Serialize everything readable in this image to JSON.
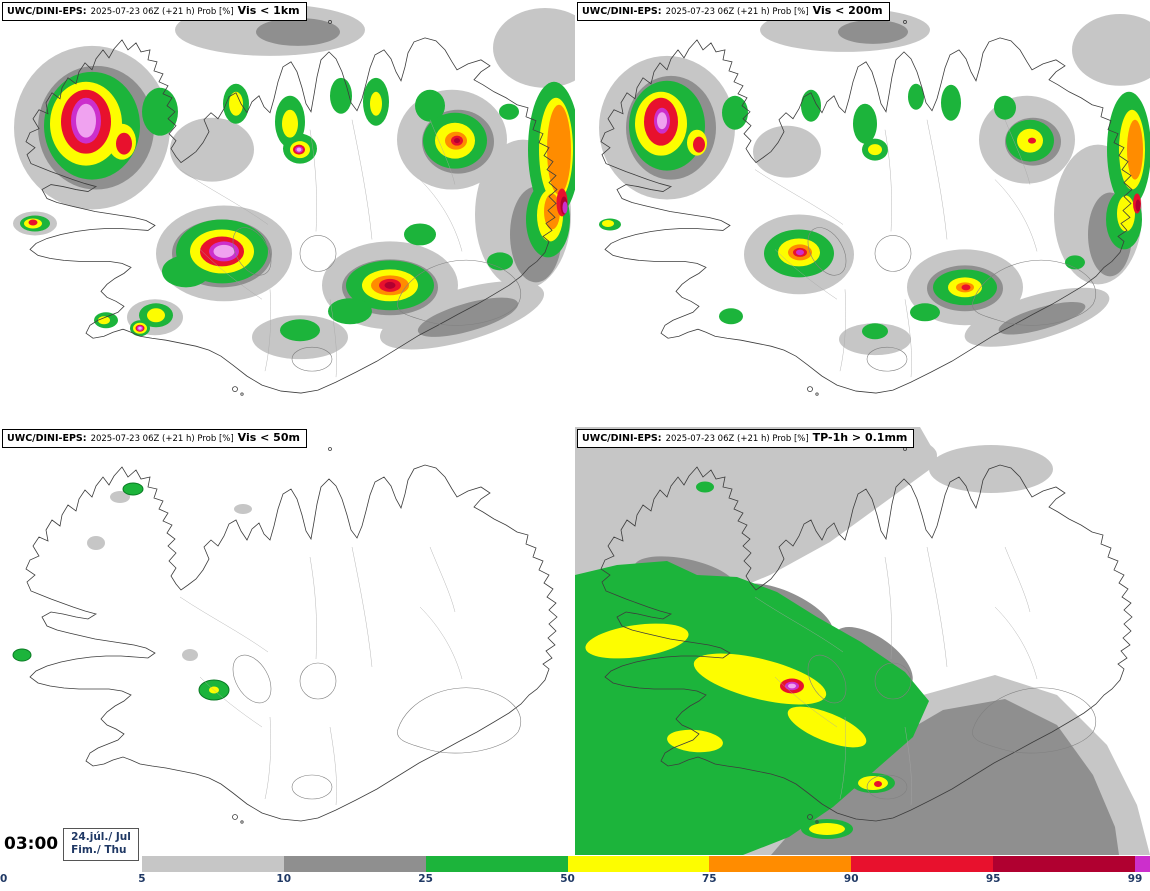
{
  "panels": [
    {
      "model": "UWC/DINI-EPS:",
      "meta": "2025-07-23 06Z (+21 h) Prob [%]",
      "param": "Vis < 1km"
    },
    {
      "model": "UWC/DINI-EPS:",
      "meta": "2025-07-23 06Z (+21 h) Prob [%]",
      "param": "Vis < 200m"
    },
    {
      "model": "UWC/DINI-EPS:",
      "meta": "2025-07-23 06Z (+21 h) Prob [%]",
      "param": "Vis < 50m"
    },
    {
      "model": "UWC/DINI-EPS:",
      "meta": "2025-07-23 06Z (+21 h) Prob [%]",
      "param": "TP-1h > 0.1mm"
    }
  ],
  "footer": {
    "time": "03:00",
    "date_line1": "24.júl./ Jul",
    "date_line2": "Fim./ Thu"
  },
  "legend": {
    "ticks": [
      "0",
      "5",
      "10",
      "25",
      "50",
      "75",
      "90",
      "95",
      "99"
    ],
    "boundaries_pct": [
      0,
      12.34,
      24.67,
      37.01,
      49.35,
      61.68,
      74.02,
      86.36,
      98.7,
      100
    ],
    "colors": [
      "#c6c6c6",
      "#8f8f8f",
      "#1cb43b",
      "#fdfd00",
      "#ff8c00",
      "#e8112d",
      "#b00030",
      "#cc2fcc"
    ],
    "tick_color": "#1f3864"
  }
}
